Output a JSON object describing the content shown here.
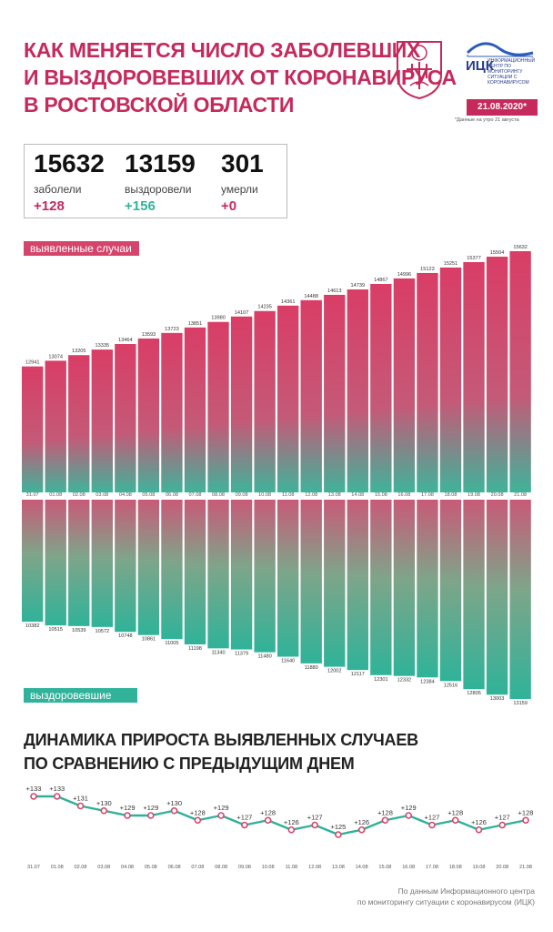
{
  "header": {
    "title_lines": [
      "КАК МЕНЯЕТСЯ ЧИСЛО ЗАБОЛЕВШИХ",
      "И ВЫЗДОРОВЕВШИХ ОТ КОРОНАВИРУСА",
      "В РОСТОВСКОЙ ОБЛАСТИ"
    ],
    "logo_name": "ИЦК",
    "logo_desc": "ИНФОРМАЦИОННЫЙ ЦЕНТР ПО МОНИТОРИНГУ СИТУАЦИИ С КОРОНАВИРУСОМ",
    "date": "21.08.2020*",
    "date_note": "*Данные на утро 21 августа"
  },
  "summary": {
    "cases": {
      "value": "15632",
      "label": "заболели",
      "delta": "+128"
    },
    "recovered": {
      "value": "13159",
      "label": "выздоровели",
      "delta": "+156"
    },
    "deaths": {
      "value": "301",
      "label": "умерли",
      "delta": "+0"
    }
  },
  "colors": {
    "accent": "#c62a5c",
    "red": "#d5456b",
    "teal": "#31b39b",
    "line": "#2fb199",
    "marker": "#d8456a"
  },
  "icons": {
    "coat": "coat-of-arms-icon",
    "logo": "itsk-logo-icon"
  },
  "chart_data": [
    {
      "type": "bar",
      "label": "выявленные случаи",
      "categories": [
        "31.07",
        "01.08",
        "02.08",
        "03.08",
        "04.08",
        "05.08",
        "06.08",
        "07.08",
        "08.08",
        "09.08",
        "10.08",
        "11.08",
        "12.08",
        "13.08",
        "14.08",
        "15.08",
        "16.08",
        "17.08",
        "18.08",
        "19.08",
        "20.08",
        "21.08"
      ],
      "values": [
        12941,
        13074,
        13205,
        13335,
        13464,
        13593,
        13723,
        13851,
        13980,
        14107,
        14235,
        14361,
        14488,
        14613,
        14739,
        14867,
        14996,
        15123,
        15251,
        15377,
        15504,
        15632
      ]
    },
    {
      "type": "bar",
      "label": "выздоровевшие",
      "categories": [
        "31.07",
        "01.08",
        "02.08",
        "03.08",
        "04.08",
        "05.08",
        "06.08",
        "07.08",
        "08.08",
        "09.08",
        "10.08",
        "11.08",
        "12.08",
        "13.08",
        "14.08",
        "15.08",
        "16.08",
        "17.08",
        "18.08",
        "19.08",
        "20.08",
        "21.08"
      ],
      "values": [
        10382,
        10515,
        10539,
        10572,
        10748,
        10861,
        11005,
        11198,
        11340,
        11379,
        11480,
        11640,
        11880,
        12002,
        12117,
        12301,
        12332,
        12384,
        12516,
        12805,
        13003,
        13159
      ]
    },
    {
      "type": "line",
      "title_lines": [
        "ДИНАМИКА ПРИРОСТА ВЫЯВЛЕННЫХ СЛУЧАЕВ",
        "ПО СРАВНЕНИЮ С ПРЕДЫДУЩИМ ДНЕМ"
      ],
      "categories": [
        "31.07",
        "01.08",
        "02.08",
        "03.08",
        "04.08",
        "05.08",
        "06.08",
        "07.08",
        "08.08",
        "09.08",
        "10.08",
        "11.08",
        "12.08",
        "13.08",
        "14.08",
        "15.08",
        "16.08",
        "17.08",
        "18.08",
        "19.08",
        "20.08",
        "21.08"
      ],
      "values": [
        133,
        133,
        131,
        130,
        129,
        129,
        130,
        128,
        129,
        127,
        128,
        126,
        127,
        125,
        126,
        128,
        129,
        127,
        128,
        126,
        127,
        128
      ],
      "value_labels": [
        "+133",
        "+133",
        "+131",
        "+130",
        "+129",
        "+129",
        "+130",
        "+128",
        "+129",
        "+127",
        "+128",
        "+126",
        "+127",
        "+125",
        "+126",
        "+128",
        "+129",
        "+127",
        "+128",
        "+126",
        "+127",
        "+128"
      ]
    }
  ],
  "footer": {
    "source_lines": [
      "По данным Информационного центра",
      "по мониторингу ситуации с коронавирусом (ИЦК)"
    ]
  }
}
